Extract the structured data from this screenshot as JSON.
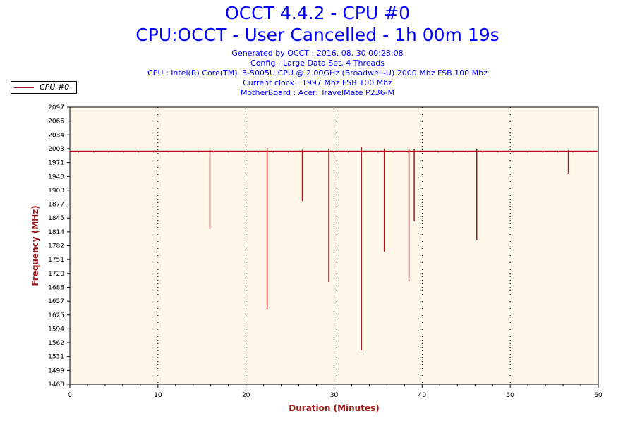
{
  "header": {
    "title": "OCCT 4.4.2 - CPU #0",
    "subtitle": "CPU:OCCT - User Cancelled - 1h 00m 19s",
    "info": [
      "Generated by OCCT : 2016. 08. 30 00:28:08",
      "Config : Large Data Set, 4 Threads",
      "CPU : Intel(R) Core(TM) i3-5005U CPU @ 2.00GHz (Broadwell-U) 2000 Mhz FSB 100 Mhz",
      "Current clock : 1997 Mhz FSB 100 Mhz",
      "MotherBoard : Acer: TravelMate P236-M"
    ]
  },
  "colors": {
    "series": "#a01818",
    "plot_bg": "#fff8ea",
    "title": "#0000ff",
    "axis_label": "#a01818"
  },
  "chart_data": {
    "type": "line",
    "title": "OCCT 4.4.2 - CPU #0",
    "xlabel": "Duration (Minutes)",
    "ylabel": "Frequency (MHz)",
    "xlim": [
      0,
      60
    ],
    "ylim": [
      1468,
      2097
    ],
    "xticks": [
      0,
      10,
      20,
      30,
      40,
      50,
      60
    ],
    "yticks": [
      2097,
      2066,
      2034,
      2003,
      1971,
      1940,
      1908,
      1877,
      1845,
      1814,
      1782,
      1751,
      1720,
      1688,
      1657,
      1625,
      1594,
      1562,
      1531,
      1499,
      1468
    ],
    "grid": "vertical dotted",
    "legend": {
      "position": "top-left",
      "entries": [
        "CPU #0"
      ]
    },
    "series": [
      {
        "name": "CPU #0",
        "baseline": 1997,
        "spikes": [
          {
            "x": 15.9,
            "min": 1820,
            "max": 2001
          },
          {
            "x": 22.4,
            "min": 1638,
            "max": 2004
          },
          {
            "x": 26.4,
            "min": 1884,
            "max": 2000
          },
          {
            "x": 29.4,
            "min": 1700,
            "max": 2003
          },
          {
            "x": 33.1,
            "min": 1545,
            "max": 2007
          },
          {
            "x": 35.7,
            "min": 1769,
            "max": 2003
          },
          {
            "x": 38.5,
            "min": 1702,
            "max": 2003
          },
          {
            "x": 39.1,
            "min": 1838,
            "max": 2002
          },
          {
            "x": 46.2,
            "min": 1795,
            "max": 2002
          },
          {
            "x": 56.6,
            "min": 1945,
            "max": 1999
          }
        ]
      }
    ]
  }
}
